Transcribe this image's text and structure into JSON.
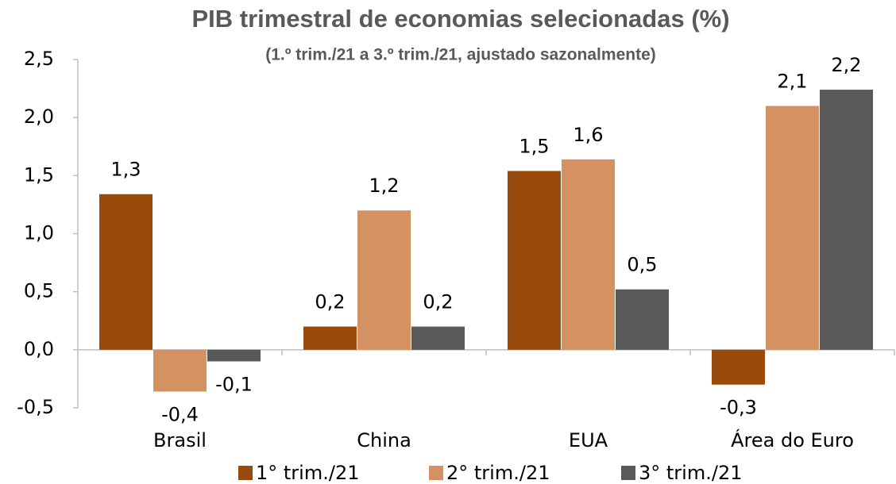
{
  "chart_data": {
    "type": "bar",
    "title": "PIB trimestral de economias selecionadas (%)",
    "subtitle": "(1.º trim./21 a 3.º trim./21, ajustado sazonalmente)",
    "categories": [
      "Brasil",
      "China",
      "EUA",
      "Área do Euro"
    ],
    "series": [
      {
        "name": "1° trim./21",
        "color": "#9a4a0b",
        "values": [
          1.34,
          0.2,
          1.54,
          -0.3
        ],
        "value_labels": [
          "1,3",
          "0,2",
          "1,5",
          "-0,3"
        ]
      },
      {
        "name": "2° trim./21",
        "color": "#d49262",
        "values": [
          -0.36,
          1.2,
          1.64,
          2.1
        ],
        "value_labels": [
          "-0,4",
          "1,2",
          "1,6",
          "2,1"
        ]
      },
      {
        "name": "3° trim./21",
        "color": "#595959",
        "values": [
          -0.1,
          0.2,
          0.52,
          2.24
        ],
        "value_labels": [
          "-0,1",
          "0,2",
          "0,5",
          "2,2"
        ]
      }
    ],
    "ylim": [
      -0.5,
      2.5
    ],
    "yticks": [
      {
        "value": -0.5,
        "label": "-0,5"
      },
      {
        "value": 0,
        "label": "0,0"
      },
      {
        "value": 0.5,
        "label": "0,5"
      },
      {
        "value": 1,
        "label": "1,0"
      },
      {
        "value": 1.5,
        "label": "1,5"
      },
      {
        "value": 2,
        "label": "2,0"
      },
      {
        "value": 2.5,
        "label": "2,5"
      }
    ],
    "grid": false,
    "legend": "bottom"
  }
}
